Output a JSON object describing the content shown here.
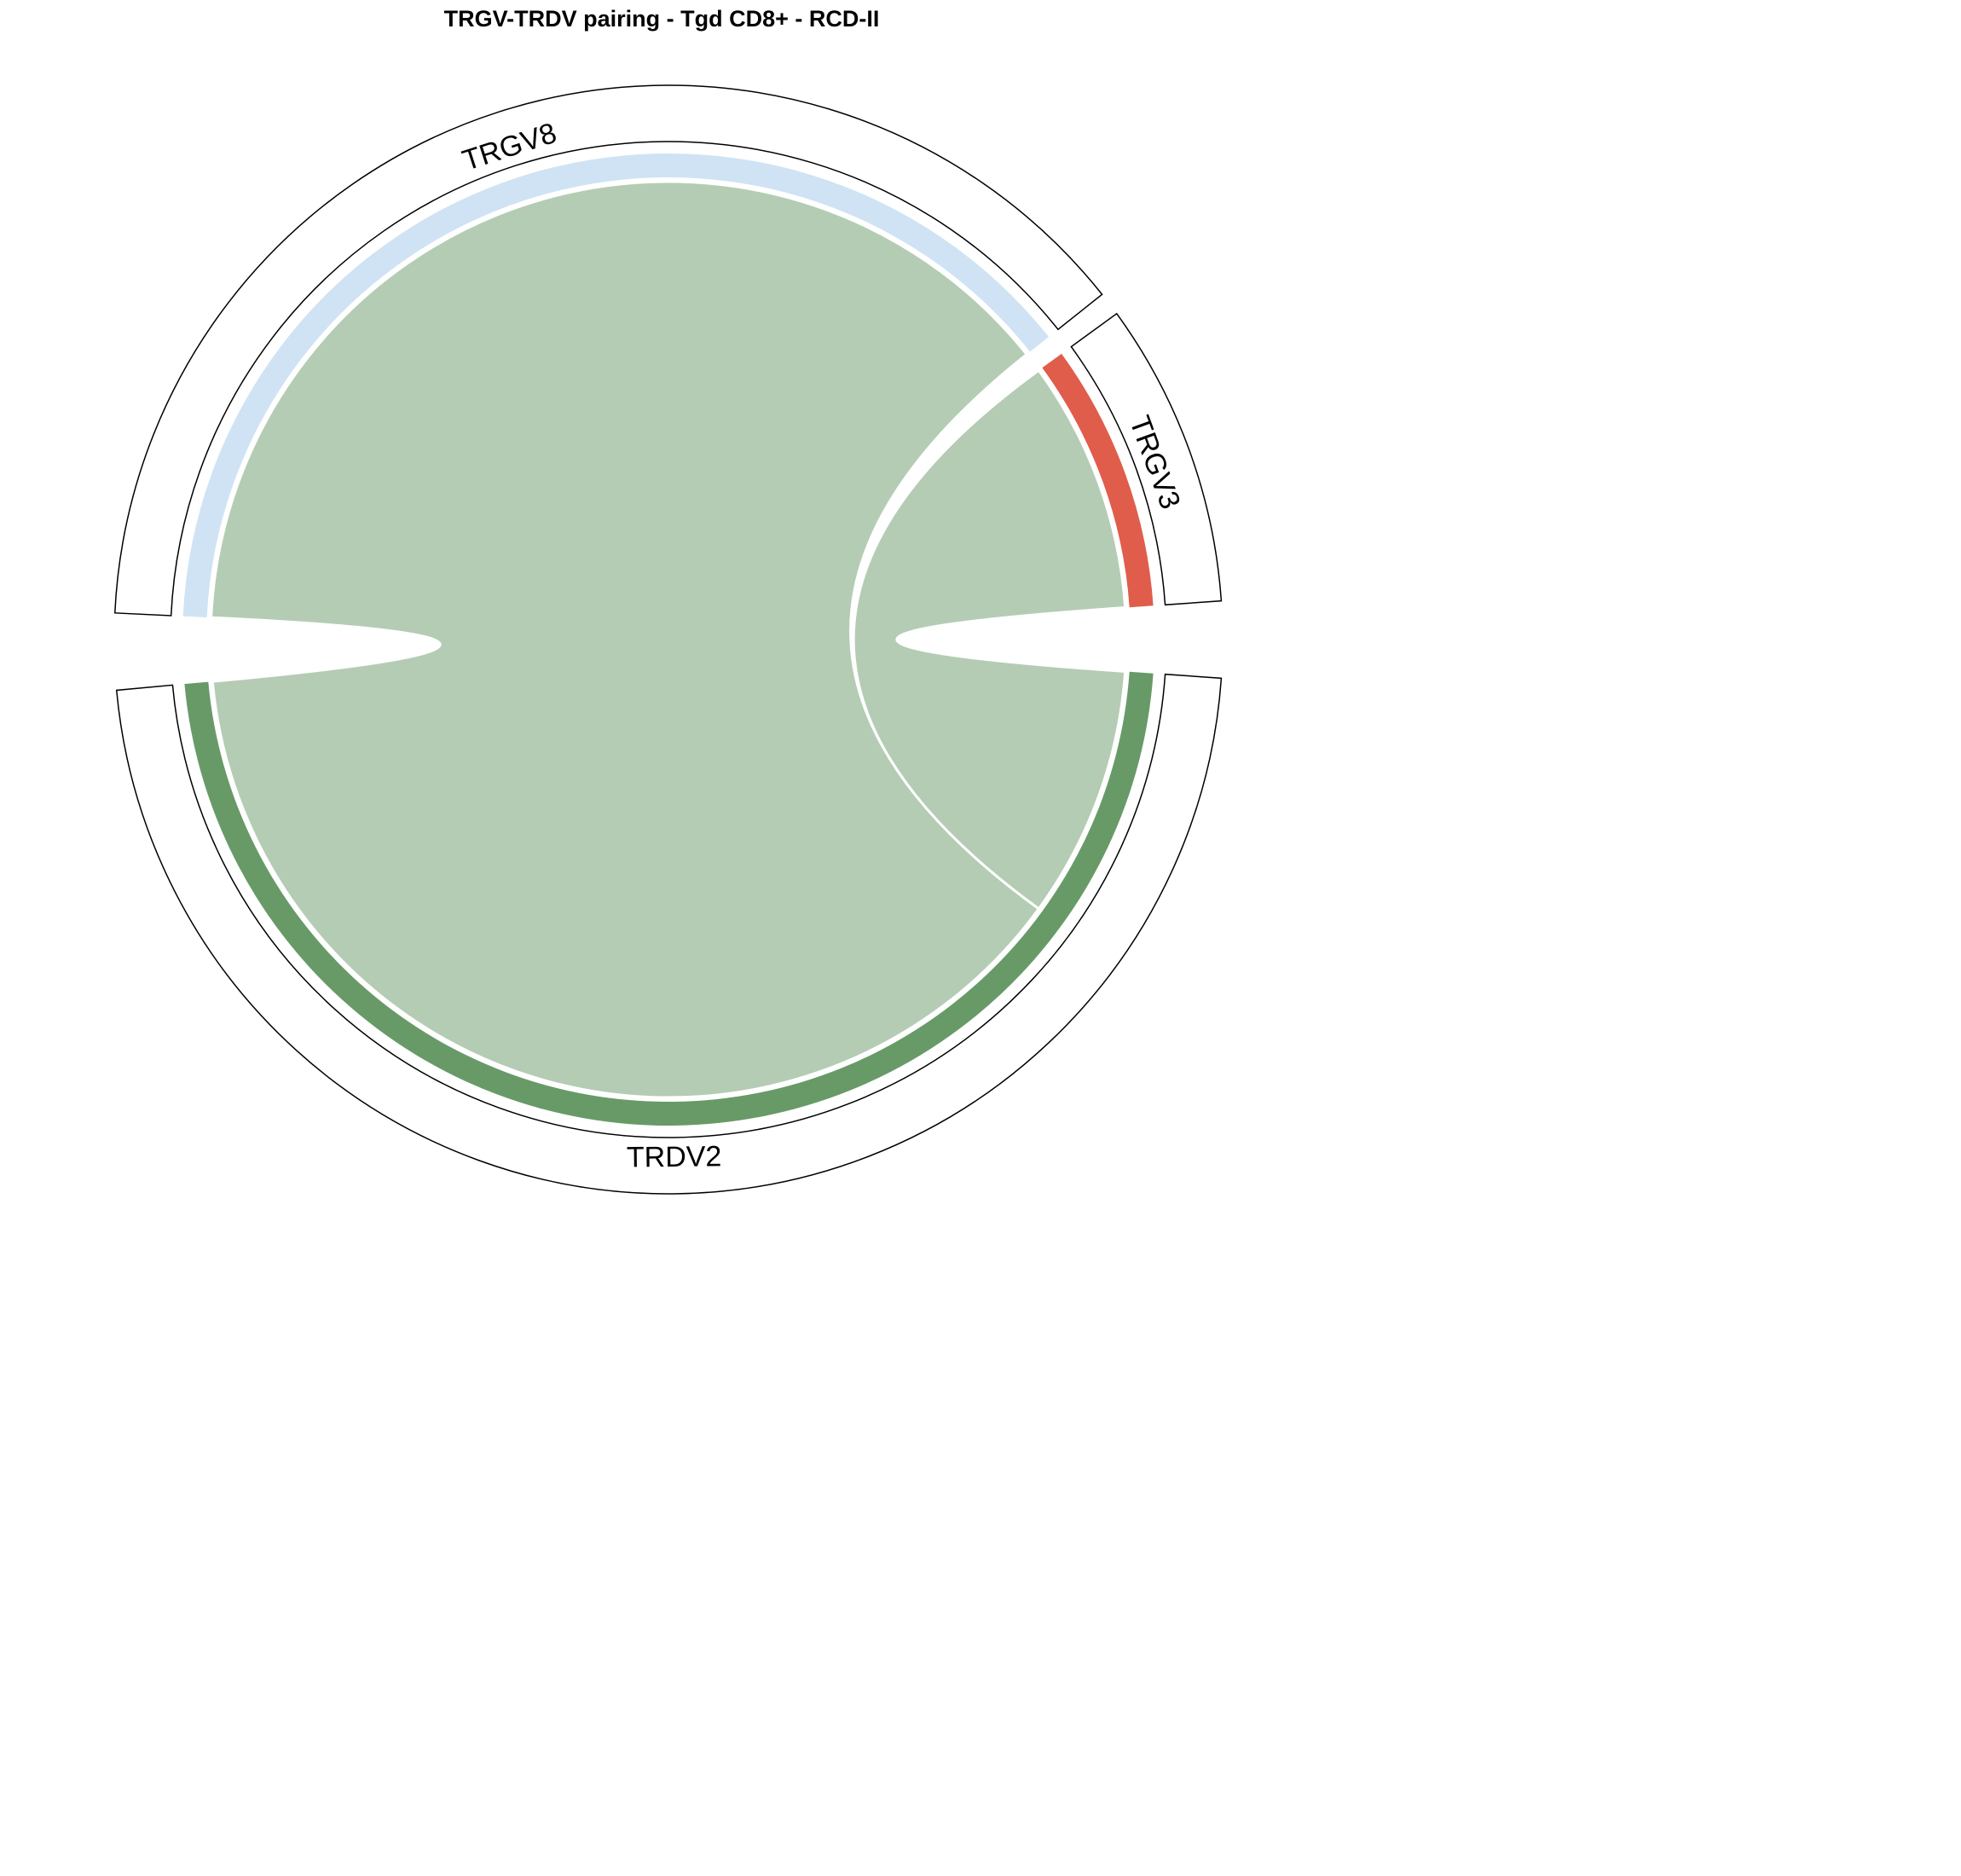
{
  "chart_data": {
    "type": "chord",
    "title": "TRGV-TRDV pairing - Tgd CD8+ - RCD-II",
    "sectors": [
      {
        "name": "TRGV8",
        "group": "TRGV",
        "color": "#CFE3F4",
        "total": 13
      },
      {
        "name": "TRGV3",
        "group": "TRGV",
        "color": "#E05D4B",
        "total": 3
      },
      {
        "name": "TRDV2",
        "group": "TRDV",
        "color": "#689A68",
        "total": 16
      }
    ],
    "links": [
      {
        "from": "TRGV8",
        "to": "TRDV2",
        "value": 13
      },
      {
        "from": "TRGV3",
        "to": "TRDV2",
        "value": 3
      }
    ],
    "link_color": "#B4CCB4",
    "outer_track": "empty label track with sector names"
  }
}
